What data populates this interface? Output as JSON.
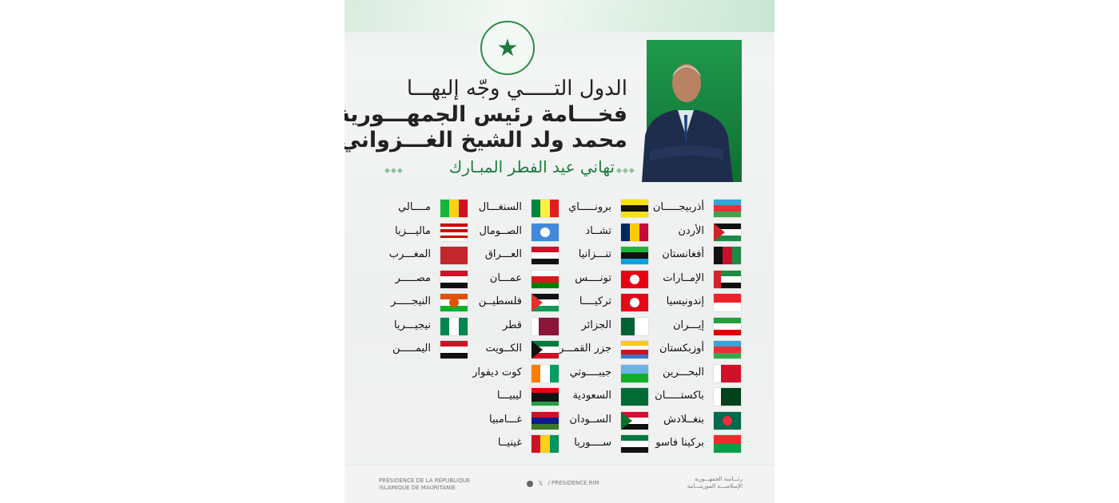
{
  "header": {
    "emblem_icon": "star-emblem-icon",
    "line1": "الدول التـــــي وجّه إليهـــا",
    "line2": "فخـــامة رئيس الجمهـــورية",
    "line3": "محمد ولد الشيخ الغـــزواني",
    "line4": "تهاني عيد الفطر المبـارك",
    "accent": "#1d7b3c"
  },
  "columns": [
    [
      {
        "name": "أذربيجـــــان",
        "flag": {
          "dir": "h",
          "colors": [
            "#3aa3d8",
            "#e8303b",
            "#3fa34d"
          ]
        }
      },
      {
        "name": "الأردن",
        "flag": {
          "dir": "h",
          "colors": [
            "#111",
            "#fff",
            "#1e8a44"
          ],
          "tri": "#d2232a"
        }
      },
      {
        "name": "أفغانستان",
        "flag": {
          "dir": "v",
          "colors": [
            "#111",
            "#c8102e",
            "#1e8a44"
          ]
        }
      },
      {
        "name": "الإمــارات",
        "flag": {
          "dir": "h",
          "colors": [
            "#1e8a44",
            "#fff",
            "#111"
          ],
          "band": "#d2232a"
        }
      },
      {
        "name": "إندونيسيا",
        "flag": {
          "dir": "h",
          "colors": [
            "#e8232a",
            "#fff"
          ]
        }
      },
      {
        "name": "إيـــران",
        "flag": {
          "dir": "h",
          "colors": [
            "#239f40",
            "#fff",
            "#da0000"
          ]
        }
      },
      {
        "name": "أوزبكستان",
        "flag": {
          "dir": "h",
          "colors": [
            "#3aa3d8",
            "#e8303b",
            "#3fa34d"
          ]
        }
      },
      {
        "name": "البحـــرين",
        "flag": {
          "dir": "v",
          "colors": [
            "#fff",
            "#ce1126",
            "#ce1126",
            "#ce1126"
          ]
        }
      },
      {
        "name": "باكستـــــان",
        "flag": {
          "dir": "v",
          "colors": [
            "#fff",
            "#01411c",
            "#01411c",
            "#01411c"
          ]
        }
      },
      {
        "name": "بنغــلادش",
        "flag": {
          "dir": "h",
          "colors": [
            "#006a4e"
          ],
          "dot": "#f42a41"
        }
      },
      {
        "name": "بركينا فاسو",
        "flag": {
          "dir": "h",
          "colors": [
            "#ef2b2d",
            "#009e49"
          ]
        }
      }
    ],
    [
      {
        "name": "برونـــــاي",
        "flag": {
          "dir": "h",
          "colors": [
            "#f7e017",
            "#111",
            "#f7e017"
          ]
        }
      },
      {
        "name": "تشــاد",
        "flag": {
          "dir": "v",
          "colors": [
            "#002664",
            "#fecb00",
            "#c60c30"
          ]
        }
      },
      {
        "name": "تنـــزانيا",
        "flag": {
          "dir": "h",
          "colors": [
            "#1eb53a",
            "#111",
            "#00a3dd"
          ]
        }
      },
      {
        "name": "تونــــس",
        "flag": {
          "dir": "h",
          "colors": [
            "#e70013"
          ],
          "dot": "#fff"
        }
      },
      {
        "name": "تركيــــا",
        "flag": {
          "dir": "h",
          "colors": [
            "#e30a17"
          ],
          "dot": "#fff"
        }
      },
      {
        "name": "الجزائر",
        "flag": {
          "dir": "v",
          "colors": [
            "#006233",
            "#fff"
          ]
        }
      },
      {
        "name": "جزر القمـــر",
        "flag": {
          "dir": "h",
          "colors": [
            "#ffc61e",
            "#fff",
            "#ce1126",
            "#3a75c4"
          ]
        }
      },
      {
        "name": "جيبــــوتي",
        "flag": {
          "dir": "h",
          "colors": [
            "#6ab2e7",
            "#12ad2b"
          ]
        }
      },
      {
        "name": "السعودية",
        "flag": {
          "dir": "h",
          "colors": [
            "#006c35"
          ]
        }
      },
      {
        "name": "الســودان",
        "flag": {
          "dir": "h",
          "colors": [
            "#d21034",
            "#fff",
            "#111"
          ],
          "tri": "#007229"
        }
      },
      {
        "name": "ســــوريا",
        "flag": {
          "dir": "h",
          "colors": [
            "#007a3d",
            "#fff",
            "#111"
          ]
        }
      }
    ],
    [
      {
        "name": "السنغـــال",
        "flag": {
          "dir": "v",
          "colors": [
            "#00853f",
            "#fdef42",
            "#e31b23"
          ]
        }
      },
      {
        "name": "الصــومال",
        "flag": {
          "dir": "h",
          "colors": [
            "#4189dd"
          ],
          "dot": "#fff"
        }
      },
      {
        "name": "العـــراق",
        "flag": {
          "dir": "h",
          "colors": [
            "#ce1126",
            "#fff",
            "#111"
          ]
        }
      },
      {
        "name": "عمـــان",
        "flag": {
          "dir": "h",
          "colors": [
            "#fff",
            "#db161b",
            "#008000"
          ]
        }
      },
      {
        "name": "فلسطيــن",
        "flag": {
          "dir": "h",
          "colors": [
            "#111",
            "#fff",
            "#149954"
          ],
          "tri": "#e4312b"
        }
      },
      {
        "name": "قطر",
        "flag": {
          "dir": "v",
          "colors": [
            "#fff",
            "#8a1538",
            "#8a1538",
            "#8a1538"
          ]
        }
      },
      {
        "name": "الكــويت",
        "flag": {
          "dir": "h",
          "colors": [
            "#007a3d",
            "#fff",
            "#ce1126"
          ],
          "tri": "#111"
        }
      },
      {
        "name": "كوت ديفوار",
        "flag": {
          "dir": "v",
          "colors": [
            "#f77f00",
            "#fff",
            "#009e60"
          ]
        }
      },
      {
        "name": "ليبيـــا",
        "flag": {
          "dir": "h",
          "colors": [
            "#e70013",
            "#111",
            "#111",
            "#239e46"
          ]
        }
      },
      {
        "name": "غـــامبيا",
        "flag": {
          "dir": "h",
          "colors": [
            "#ce1126",
            "#0c1c8c",
            "#3a7728"
          ]
        }
      },
      {
        "name": "غينيــا",
        "flag": {
          "dir": "v",
          "colors": [
            "#ce1126",
            "#fcd116",
            "#009460"
          ]
        }
      }
    ],
    [
      {
        "name": "مــــالي",
        "flag": {
          "dir": "v",
          "colors": [
            "#14b53a",
            "#fcd116",
            "#ce1126"
          ]
        }
      },
      {
        "name": "ماليـــزيا",
        "flag": {
          "dir": "h",
          "colors": [
            "#cc0001",
            "#fff",
            "#cc0001",
            "#fff",
            "#cc0001",
            "#fff"
          ]
        }
      },
      {
        "name": "المغـــرب",
        "flag": {
          "dir": "h",
          "colors": [
            "#c1272d"
          ]
        }
      },
      {
        "name": "مصـــــر",
        "flag": {
          "dir": "h",
          "colors": [
            "#ce1126",
            "#fff",
            "#111"
          ]
        }
      },
      {
        "name": "النيجـــــر",
        "flag": {
          "dir": "h",
          "colors": [
            "#e05206",
            "#fff",
            "#0db02b"
          ],
          "dot": "#e05206"
        }
      },
      {
        "name": "نيجيـــريا",
        "flag": {
          "dir": "v",
          "colors": [
            "#008751",
            "#fff",
            "#008751"
          ]
        }
      },
      {
        "name": "اليمـــــن",
        "flag": {
          "dir": "h",
          "colors": [
            "#ce1126",
            "#fff",
            "#111"
          ]
        }
      }
    ]
  ],
  "footer": {
    "left_line1": "PRÉSIDENCE DE LA RÉPUBLIQUE",
    "left_line2": "ISLAMIQUE DE MAURITANIE",
    "facebook_icon": "facebook-icon",
    "x_icon": "x-icon",
    "handle": "/ PRESIDENCE.RIM",
    "right_line1": "رئـــاسة الجمهـــورية",
    "right_line2": "الإسلاميـــة الموريتـــانية"
  }
}
